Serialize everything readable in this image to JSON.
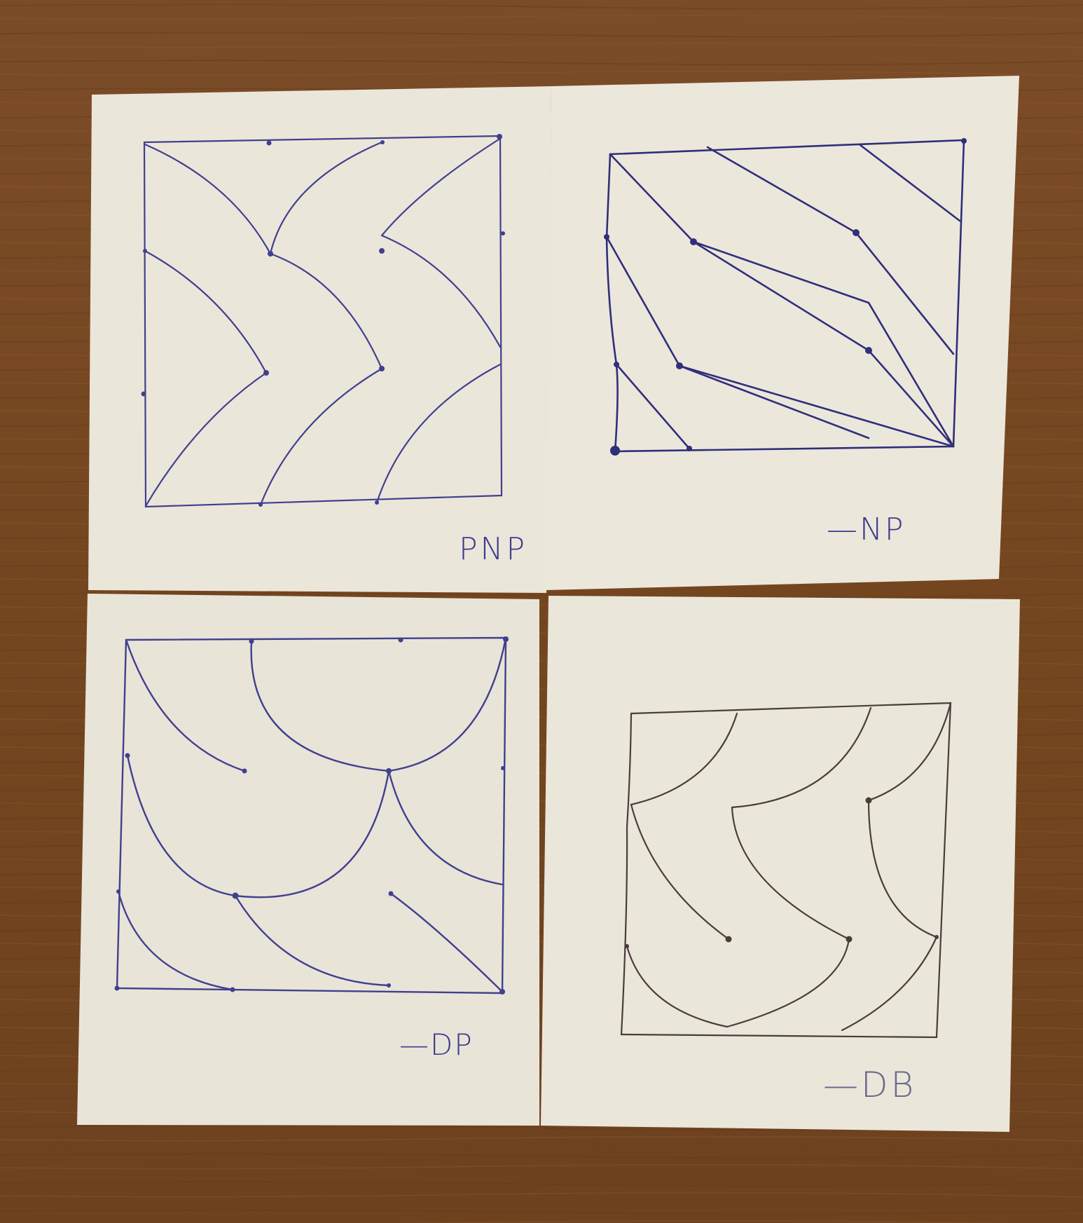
{
  "scene": {
    "description_colors": {
      "table": "#7a4a26",
      "table_dark": "#5e361a",
      "paper": "#e9e4d8",
      "ink_blue": "#3f3f8f",
      "ink_dark": "#4a3a3a"
    }
  },
  "cards": [
    {
      "id": "top-left",
      "label": "PNP"
    },
    {
      "id": "top-right",
      "label": "—NP"
    },
    {
      "id": "bottom-left",
      "label": "—DP"
    },
    {
      "id": "bottom-right",
      "label": "—DB"
    }
  ]
}
